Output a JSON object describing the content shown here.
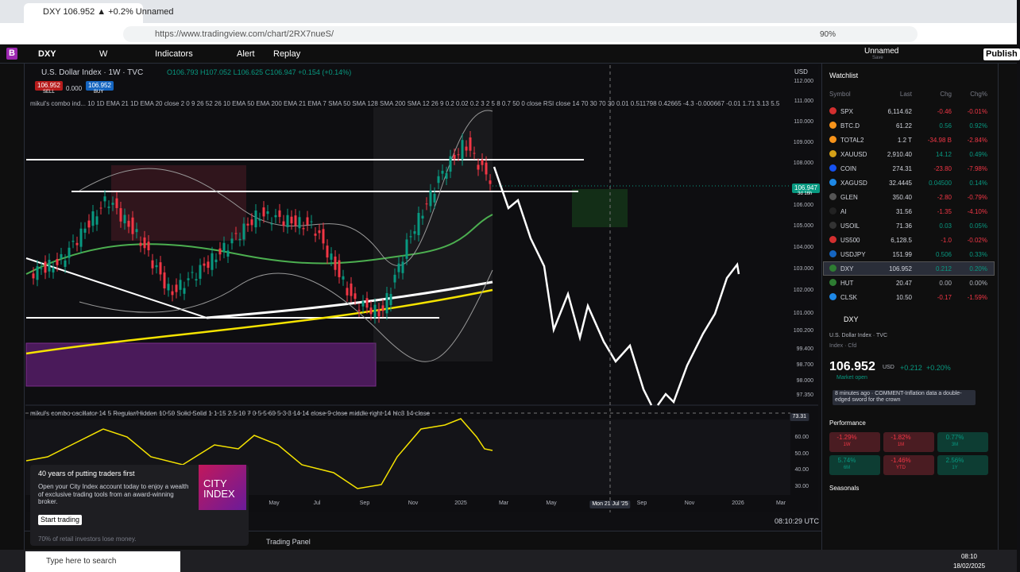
{
  "browser": {
    "tab_title": "DXY 106.952 ▲ +0.2% Unnamed",
    "url": "https://www.tradingview.com/chart/2RX7nueS/",
    "zoom": "90%"
  },
  "toolbar": {
    "avatar": "B",
    "symbol": "DXY",
    "interval": "W",
    "indicators": "Indicators",
    "alert": "Alert",
    "replay": "Replay",
    "layout_name": "Unnamed",
    "layout_sub": "Save",
    "publish": "Publish"
  },
  "chart": {
    "legend_title": "U.S. Dollar Index · 1W · TVC",
    "ohlc": "O106.793 H107.052 L106.625 C106.947 +0.154 (+0.14%)",
    "sell_price": "106.952",
    "sell": "SELL",
    "spread": "0.000",
    "buy_price": "106.952",
    "buy": "BUY",
    "indicator": "mikul's combo ind... 10 1D EMA 21 1D EMA 20 close 2 0 9 26 52 26 10 EMA 50 EMA 200 EMA 21 EMA 7 SMA 50 SMA 128 SMA 200 SMA 12 26 9 0.2 0.02 0.2 3 2 5 8 0.7 50 0 close RSI close 14 70 30 70 30 0.01 0.511798 0.42665 -4.3 -0.000667 -0.01 1.71 3.13 5.5",
    "currency": "USD",
    "price_axis": [
      "112.000",
      "111.000",
      "110.000",
      "109.000",
      "108.000",
      "106.000",
      "105.000",
      "104.000",
      "103.000",
      "102.000",
      "101.000",
      "100.200",
      "99.400",
      "98.700",
      "98.000",
      "97.350"
    ],
    "last_price": "106.947",
    "countdown": "3d 16h",
    "oscillator": "mikul's combo oscillator 14 5 Regular/Hidden 10 50 Solid Solid 1 1 15 2.5 10 7 0 5 5 60 5 3 3 14 14 close 9 close middle right 14 hlc3 14 close",
    "oscillator_axis": [
      "73.31",
      "60.00",
      "50.00",
      "40.00",
      "30.00"
    ],
    "time_axis": [
      "May",
      "Jul",
      "Sep",
      "Nov",
      "2025",
      "Mar",
      "May",
      "Mon 21 Jul '25",
      "Sep",
      "Nov",
      "2026",
      "Mar"
    ],
    "clock": "08:10:29 UTC",
    "trading_panel": "Trading Panel"
  },
  "ad": {
    "headline": "40 years of putting traders first",
    "body": "Open your City Index account today to enjoy a wealth of exclusive trading tools from an award-winning broker.",
    "button": "Start trading",
    "disclaimer": "70% of retail investors lose money.",
    "logo_top": "CITY",
    "logo_bottom": "INDEX"
  },
  "watchlist": {
    "title": "Watchlist",
    "columns": [
      "Symbol",
      "Last",
      "Chg",
      "Chg%"
    ],
    "rows": [
      {
        "symbol": "SPX",
        "last": "6,114.62",
        "chg": "-0.46",
        "chg_pct": "-0.01%",
        "icon": "#d32f2f"
      },
      {
        "symbol": "BTC.D",
        "last": "61.22",
        "chg": "0.56",
        "chg_pct": "0.92%",
        "icon": "#f7931a"
      },
      {
        "symbol": "TOTAL2",
        "last": "1.2 T",
        "chg": "-34.98 B",
        "chg_pct": "-2.84%",
        "icon": "#f7931a"
      },
      {
        "symbol": "XAUUSD",
        "last": "2,910.40",
        "chg": "14.12",
        "chg_pct": "0.49%",
        "icon": "#d4a017"
      },
      {
        "symbol": "COIN",
        "last": "274.31",
        "chg": "-23.80",
        "chg_pct": "-7.98%",
        "icon": "#1652f0"
      },
      {
        "symbol": "XAGUSD",
        "last": "32.4445",
        "chg": "0.04500",
        "chg_pct": "0.14%",
        "icon": "#1e88e5"
      },
      {
        "symbol": "GLEN",
        "last": "350.40",
        "chg": "-2.80",
        "chg_pct": "-0.79%",
        "icon": "#555555"
      },
      {
        "symbol": "AI",
        "last": "31.56",
        "chg": "-1.35",
        "chg_pct": "-4.10%",
        "icon": "#222222"
      },
      {
        "symbol": "USOIL",
        "last": "71.36",
        "chg": "0.03",
        "chg_pct": "0.05%",
        "icon": "#333333"
      },
      {
        "symbol": "US500",
        "last": "6,128.5",
        "chg": "-1.0",
        "chg_pct": "-0.02%",
        "icon": "#d32f2f"
      },
      {
        "symbol": "USDJPY",
        "last": "151.99",
        "chg": "0.506",
        "chg_pct": "0.33%",
        "icon": "#1565c0"
      },
      {
        "symbol": "DXY",
        "last": "106.952",
        "chg": "0.212",
        "chg_pct": "0.20%",
        "icon": "#2e7d32"
      },
      {
        "symbol": "HUT",
        "last": "20.47",
        "chg": "0.00",
        "chg_pct": "0.00%",
        "icon": "#2e7d32"
      },
      {
        "symbol": "CLSK",
        "last": "10.50",
        "chg": "-0.17",
        "chg_pct": "-1.59%",
        "icon": "#1e88e5"
      }
    ]
  },
  "details": {
    "symbol": "DXY",
    "name": "U.S. Dollar Index · TVC",
    "kind": "Index · Cfd",
    "price": "106.952",
    "currency": "USD",
    "change": "+0.212",
    "change_pct": "+0.20%",
    "status": "Market open",
    "news": "8 minutes ago · COMMENT-Inflation data a double-edged sword for the crown",
    "performance": "Performance",
    "perf": [
      {
        "value": "-1.29%",
        "period": "1W"
      },
      {
        "value": "-1.82%",
        "period": "1M"
      },
      {
        "value": "0.77%",
        "period": "3M"
      },
      {
        "value": "5.74%",
        "period": "6M"
      },
      {
        "value": "-1.46%",
        "period": "YTD"
      },
      {
        "value": "2.56%",
        "period": "1Y"
      }
    ],
    "seasonals": "Seasonals"
  },
  "taskbar": {
    "search": "Type here to search",
    "time": "08:10",
    "date": "18/02/2025"
  }
}
